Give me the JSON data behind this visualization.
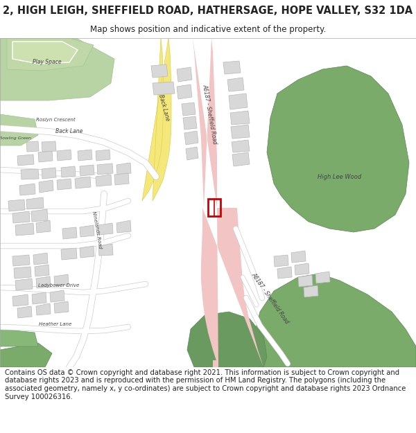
{
  "title_line1": "2, HIGH LEIGH, SHEFFIELD ROAD, HATHERSAGE, HOPE VALLEY, S32 1DA",
  "title_line2": "Map shows position and indicative extent of the property.",
  "footer": "Contains OS data © Crown copyright and database right 2021. This information is subject to Crown copyright and database rights 2023 and is reproduced with the permission of HM Land Registry. The polygons (including the associated geometry, namely x, y co-ordinates) are subject to Crown copyright and database rights 2023 Ordnance Survey 100026316.",
  "bg_color": "#ffffff",
  "map_bg": "#f8f8f8",
  "road_pink": "#f2c4c4",
  "road_pink2": "#eaaabb",
  "road_yellow": "#f5e87a",
  "road_white": "#ffffff",
  "road_outline": "#dddddd",
  "green_dark": "#7aab6a",
  "green_mid": "#9dc48a",
  "green_light": "#b8d4a4",
  "building_color": "#d8d8d8",
  "building_outline": "#b8b8b8",
  "highlight_red": "#cc0000",
  "text_dark": "#222222",
  "text_road": "#444444",
  "title_fontsize": 10.5,
  "subtitle_fontsize": 8.5,
  "footer_fontsize": 7.2
}
